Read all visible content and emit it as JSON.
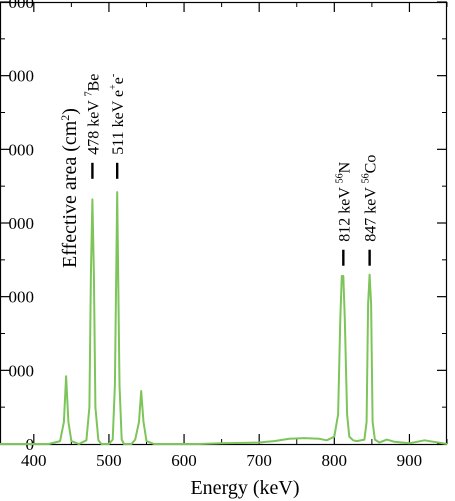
{
  "chart_data": {
    "type": "line",
    "title": "",
    "xlabel": "Energy (keV)",
    "ylabel": "Effective area (cm2)",
    "xlim": [
      355,
      950
    ],
    "ylim": [
      0,
      6000
    ],
    "x_ticks": [
      400,
      500,
      600,
      700,
      800,
      900
    ],
    "x_tick_labels": [
      "400",
      "500",
      "600",
      "700",
      "800",
      "900"
    ],
    "y_ticks": [
      0,
      1000,
      2000,
      3000,
      4000,
      5000,
      6000
    ],
    "y_tick_labels": [
      "0",
      "000",
      "000",
      "000",
      "000",
      "000",
      "000"
    ],
    "grid": false,
    "line_color": "#7dc55a",
    "series": [
      {
        "x": [
          355,
          380,
          400,
          420,
          435,
          440,
          443,
          446,
          450,
          460,
          470,
          474,
          476,
          478,
          480,
          482,
          486,
          490,
          500,
          505,
          508,
          511,
          514,
          517,
          520,
          525,
          530,
          535,
          540,
          543,
          546,
          550,
          560,
          580,
          600,
          620,
          650,
          680,
          700,
          710,
          720,
          740,
          760,
          780,
          790,
          800,
          805,
          808,
          810,
          812,
          814,
          817,
          820,
          825,
          830,
          840,
          843,
          845,
          847,
          849,
          851,
          854,
          860,
          870,
          880,
          900,
          920,
          950
        ],
        "y": [
          0,
          0,
          0,
          0,
          40,
          300,
          920,
          300,
          40,
          0,
          50,
          500,
          2300,
          3320,
          2300,
          500,
          50,
          0,
          0,
          60,
          800,
          3420,
          800,
          60,
          0,
          0,
          0,
          60,
          300,
          720,
          300,
          40,
          0,
          0,
          0,
          0,
          10,
          15,
          20,
          30,
          40,
          70,
          80,
          70,
          50,
          100,
          400,
          1700,
          2280,
          2280,
          1700,
          400,
          100,
          50,
          40,
          60,
          300,
          1900,
          2300,
          1900,
          300,
          60,
          20,
          60,
          30,
          10,
          50,
          0
        ]
      }
    ],
    "annotations": [
      {
        "energy": "478 keV",
        "isotope_mass": "7",
        "isotope_symbol": "Be",
        "x": 478,
        "y": 3600
      },
      {
        "energy": "511 keV",
        "particle": "e",
        "sup_plus": "+",
        "particle2": "e",
        "sup_minus": "-",
        "x": 511,
        "y": 3600
      },
      {
        "energy": "812 keV",
        "isotope_mass": "56",
        "isotope_symbol": "N",
        "x": 812,
        "y": 2420
      },
      {
        "energy": "847 keV",
        "isotope_mass": "56",
        "isotope_symbol": "Co",
        "x": 847,
        "y": 2420
      }
    ]
  }
}
